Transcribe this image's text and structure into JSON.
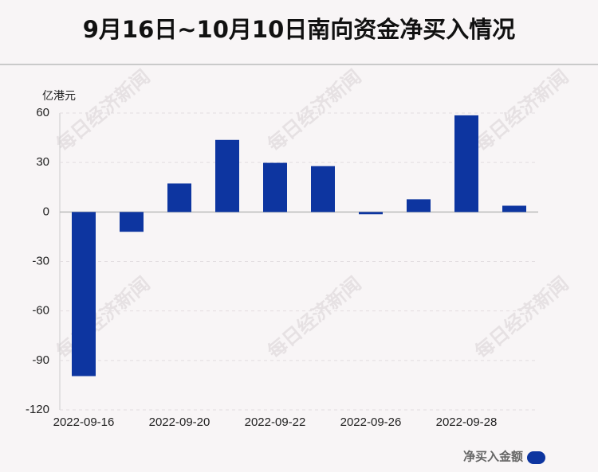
{
  "chart_data": {
    "type": "bar",
    "title": "9月16日~10月10日南向资金净买入情况",
    "y_label": "亿港元",
    "watermark": "每日经济新闻",
    "categories": [
      "2022-09-16",
      null,
      "2022-09-20",
      null,
      "2022-09-22",
      null,
      "2022-09-26",
      null,
      "2022-09-28",
      null
    ],
    "series": [
      {
        "name": "净买入金额",
        "color": "#0d35a0",
        "values": [
          -99.5,
          -12,
          17.3,
          43.7,
          29.8,
          27.8,
          -1.4,
          7.7,
          58.6,
          3.8
        ]
      }
    ],
    "ylim": [
      -120,
      60
    ],
    "yticks": [
      60,
      30,
      0,
      -30,
      -60,
      -90,
      -120
    ],
    "grid": true
  }
}
